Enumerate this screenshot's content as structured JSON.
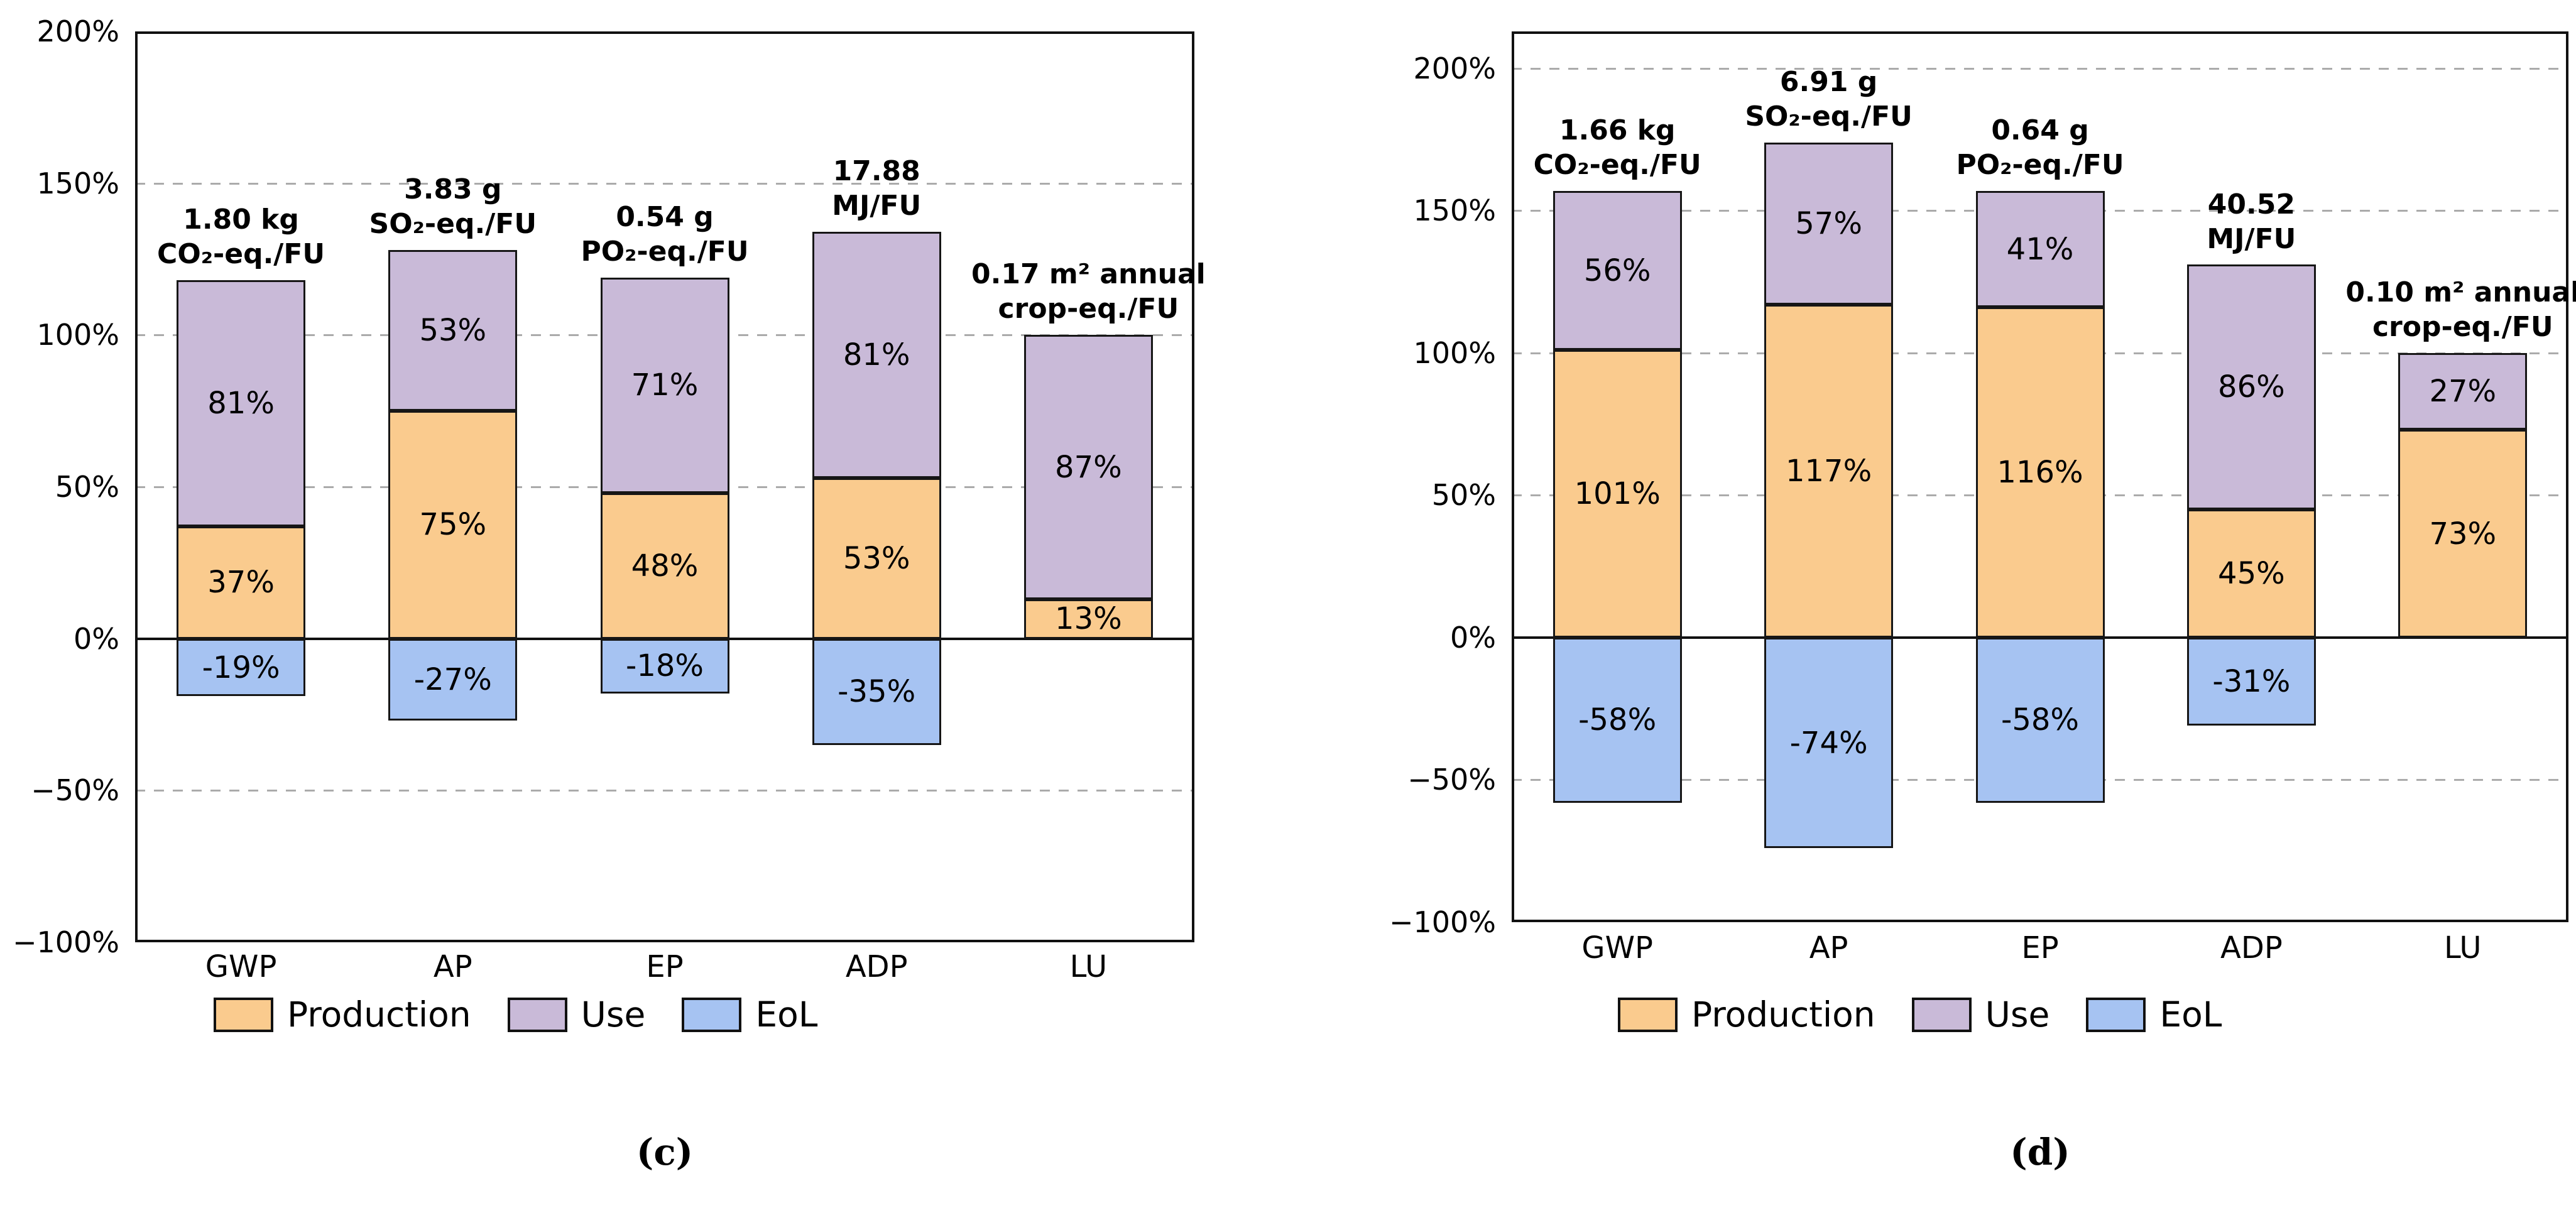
{
  "figure": {
    "background": "#ffffff",
    "series_colors": {
      "production": "#FACB8E",
      "use": "#C9BAD8",
      "eol": "#A6C3F2"
    },
    "border_color": "#161616",
    "gridline_color": "#ababab",
    "legend": {
      "items": [
        {
          "key": "production",
          "label": "Production"
        },
        {
          "key": "use",
          "label": "Use"
        },
        {
          "key": "eol",
          "label": "EoL"
        }
      ]
    }
  },
  "chart_data": [
    {
      "id": "c",
      "type": "bar",
      "stacked": true,
      "caption": "(c)",
      "ylim": [
        -100,
        200
      ],
      "yticks": [
        200,
        150,
        100,
        50,
        0,
        -50,
        -100
      ],
      "ytick_labels": [
        "200%",
        "150%",
        "100%",
        "50%",
        "0%",
        "−50%",
        "−100%"
      ],
      "dashed_gridlines": [
        150,
        100,
        50,
        -50
      ],
      "categories": [
        "GWP",
        "AP",
        "EP",
        "ADP",
        "LU"
      ],
      "series": [
        {
          "name": "Production",
          "key": "production",
          "values": [
            37,
            75,
            48,
            53,
            13
          ]
        },
        {
          "name": "Use",
          "key": "use",
          "values": [
            81,
            53,
            71,
            81,
            87
          ]
        },
        {
          "name": "EoL",
          "key": "eol",
          "values": [
            -19,
            -27,
            -18,
            -35,
            0
          ]
        }
      ],
      "unit_labels": [
        [
          "1.80 kg",
          "CO₂-eq./FU"
        ],
        [
          "3.83 g",
          "SO₂-eq./FU"
        ],
        [
          "0.54 g",
          "PO₂-eq./FU"
        ],
        [
          "17.88",
          "MJ/FU"
        ],
        [
          "0.17 m² annual",
          "crop-eq./FU"
        ]
      ]
    },
    {
      "id": "d",
      "type": "bar",
      "stacked": true,
      "caption": "(d)",
      "ylim": [
        -100,
        213
      ],
      "yticks": [
        200,
        150,
        100,
        50,
        0,
        -50,
        -100
      ],
      "ytick_labels": [
        "200%",
        "150%",
        "100%",
        "50%",
        "0%",
        "−50%",
        "−100%"
      ],
      "dashed_gridlines": [
        200,
        150,
        100,
        50,
        -50
      ],
      "categories": [
        "GWP",
        "AP",
        "EP",
        "ADP",
        "LU"
      ],
      "series": [
        {
          "name": "Production",
          "key": "production",
          "values": [
            101,
            117,
            116,
            45,
            73
          ]
        },
        {
          "name": "Use",
          "key": "use",
          "values": [
            56,
            57,
            41,
            86,
            27
          ]
        },
        {
          "name": "EoL",
          "key": "eol",
          "values": [
            -58,
            -74,
            -58,
            -31,
            0
          ]
        }
      ],
      "unit_labels": [
        [
          "1.66 kg",
          "CO₂-eq./FU"
        ],
        [
          "6.91 g",
          "SO₂-eq./FU"
        ],
        [
          "0.64 g",
          "PO₂-eq./FU"
        ],
        [
          "40.52",
          "MJ/FU"
        ],
        [
          "0.10 m² annual",
          "crop-eq./FU"
        ]
      ]
    }
  ]
}
